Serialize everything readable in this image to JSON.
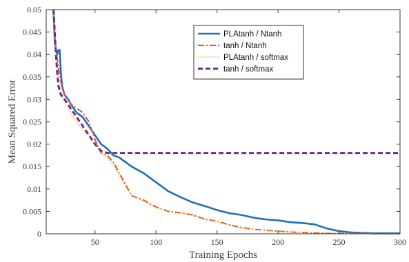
{
  "chart_data": {
    "type": "line",
    "xlabel": "Training Epochs",
    "ylabel": "Mean Squared Error",
    "xlim": [
      10,
      300
    ],
    "ylim": [
      0,
      0.05
    ],
    "x_ticks": [
      50,
      100,
      150,
      200,
      250,
      300
    ],
    "y_ticks": [
      0,
      0.005,
      0.01,
      0.015,
      0.02,
      0.025,
      0.03,
      0.035,
      0.04,
      0.045,
      0.05
    ],
    "y_tick_labels": [
      "0",
      "0.005",
      "0.01",
      "0.015",
      "0.02",
      "0.025",
      "0.03",
      "0.035",
      "0.04",
      "0.045",
      "0.05"
    ],
    "grid": false,
    "legend_position": "top-right",
    "series": [
      {
        "name": "PLAtanh / Ntanh",
        "color": "#1f6fb5",
        "style": "solid",
        "x": [
          16,
          17,
          18,
          19,
          20,
          21,
          22,
          23,
          25,
          28,
          30,
          35,
          40,
          45,
          50,
          55,
          60,
          65,
          70,
          80,
          90,
          100,
          110,
          120,
          130,
          140,
          150,
          160,
          170,
          180,
          190,
          200,
          210,
          220,
          230,
          240,
          250,
          260,
          270,
          280,
          290,
          300
        ],
        "y": [
          0.05,
          0.043,
          0.041,
          0.04,
          0.041,
          0.041,
          0.036,
          0.033,
          0.031,
          0.03,
          0.029,
          0.027,
          0.026,
          0.024,
          0.022,
          0.02,
          0.019,
          0.0175,
          0.017,
          0.015,
          0.0135,
          0.0115,
          0.0095,
          0.0082,
          0.007,
          0.0062,
          0.0053,
          0.0046,
          0.0042,
          0.0036,
          0.0032,
          0.003,
          0.0026,
          0.0024,
          0.0021,
          0.0012,
          0.0006,
          0.0003,
          0.0002,
          0.0001,
          0.0001,
          0.0001
        ]
      },
      {
        "name": "tanh / Ntanh",
        "color": "#e0522a",
        "style": "dashdot",
        "x": [
          16,
          17,
          18,
          19,
          20,
          22,
          25,
          28,
          30,
          35,
          40,
          45,
          50,
          55,
          60,
          65,
          70,
          75,
          80,
          90,
          100,
          110,
          120,
          130,
          140,
          150,
          160,
          170,
          180,
          190,
          200,
          210,
          220,
          230,
          240,
          250,
          260,
          270,
          280,
          290,
          300
        ],
        "y": [
          0.05,
          0.045,
          0.041,
          0.039,
          0.037,
          0.034,
          0.031,
          0.03,
          0.029,
          0.028,
          0.027,
          0.025,
          0.021,
          0.018,
          0.0175,
          0.016,
          0.0135,
          0.011,
          0.0085,
          0.0075,
          0.006,
          0.005,
          0.0047,
          0.0042,
          0.0033,
          0.0028,
          0.002,
          0.0014,
          0.001,
          0.0008,
          0.0006,
          0.0004,
          0.0003,
          0.0002,
          0.0001,
          0.0001,
          0.0001,
          0.0001,
          0,
          0,
          0
        ]
      },
      {
        "name": "PLAtanh / softmax",
        "color": "#f0b030",
        "style": "dotted",
        "x": [
          16,
          17,
          18,
          19,
          20,
          22,
          25,
          28,
          30,
          35,
          40,
          45,
          50,
          55,
          60,
          65,
          70,
          75,
          80,
          90,
          100,
          110,
          120,
          130,
          140,
          150,
          160,
          170,
          180,
          190,
          200,
          210,
          220,
          230,
          240,
          250,
          260,
          270,
          280,
          290,
          300
        ],
        "y": [
          0.05,
          0.044,
          0.04,
          0.037,
          0.035,
          0.032,
          0.029,
          0.028,
          0.027,
          0.025,
          0.023,
          0.022,
          0.02,
          0.018,
          0.017,
          0.0155,
          0.013,
          0.0105,
          0.0085,
          0.0072,
          0.0058,
          0.0049,
          0.0046,
          0.0041,
          0.0032,
          0.0027,
          0.0019,
          0.0013,
          0.001,
          0.0008,
          0.0006,
          0.0004,
          0.0003,
          0.0002,
          0.0001,
          0.0001,
          0.0001,
          0.0001,
          0,
          0,
          0
        ]
      },
      {
        "name": "tanh / softmax",
        "color": "#6a2c91",
        "style": "dashed",
        "x": [
          16,
          17,
          18,
          19,
          20,
          22,
          25,
          30,
          35,
          40,
          45,
          50,
          55,
          60,
          62,
          65,
          80,
          100,
          150,
          200,
          250,
          300
        ],
        "y": [
          0.05,
          0.045,
          0.04,
          0.036,
          0.033,
          0.031,
          0.03,
          0.028,
          0.026,
          0.024,
          0.022,
          0.02,
          0.0185,
          0.018,
          0.018,
          0.018,
          0.018,
          0.018,
          0.018,
          0.018,
          0.018,
          0.018
        ]
      }
    ]
  }
}
